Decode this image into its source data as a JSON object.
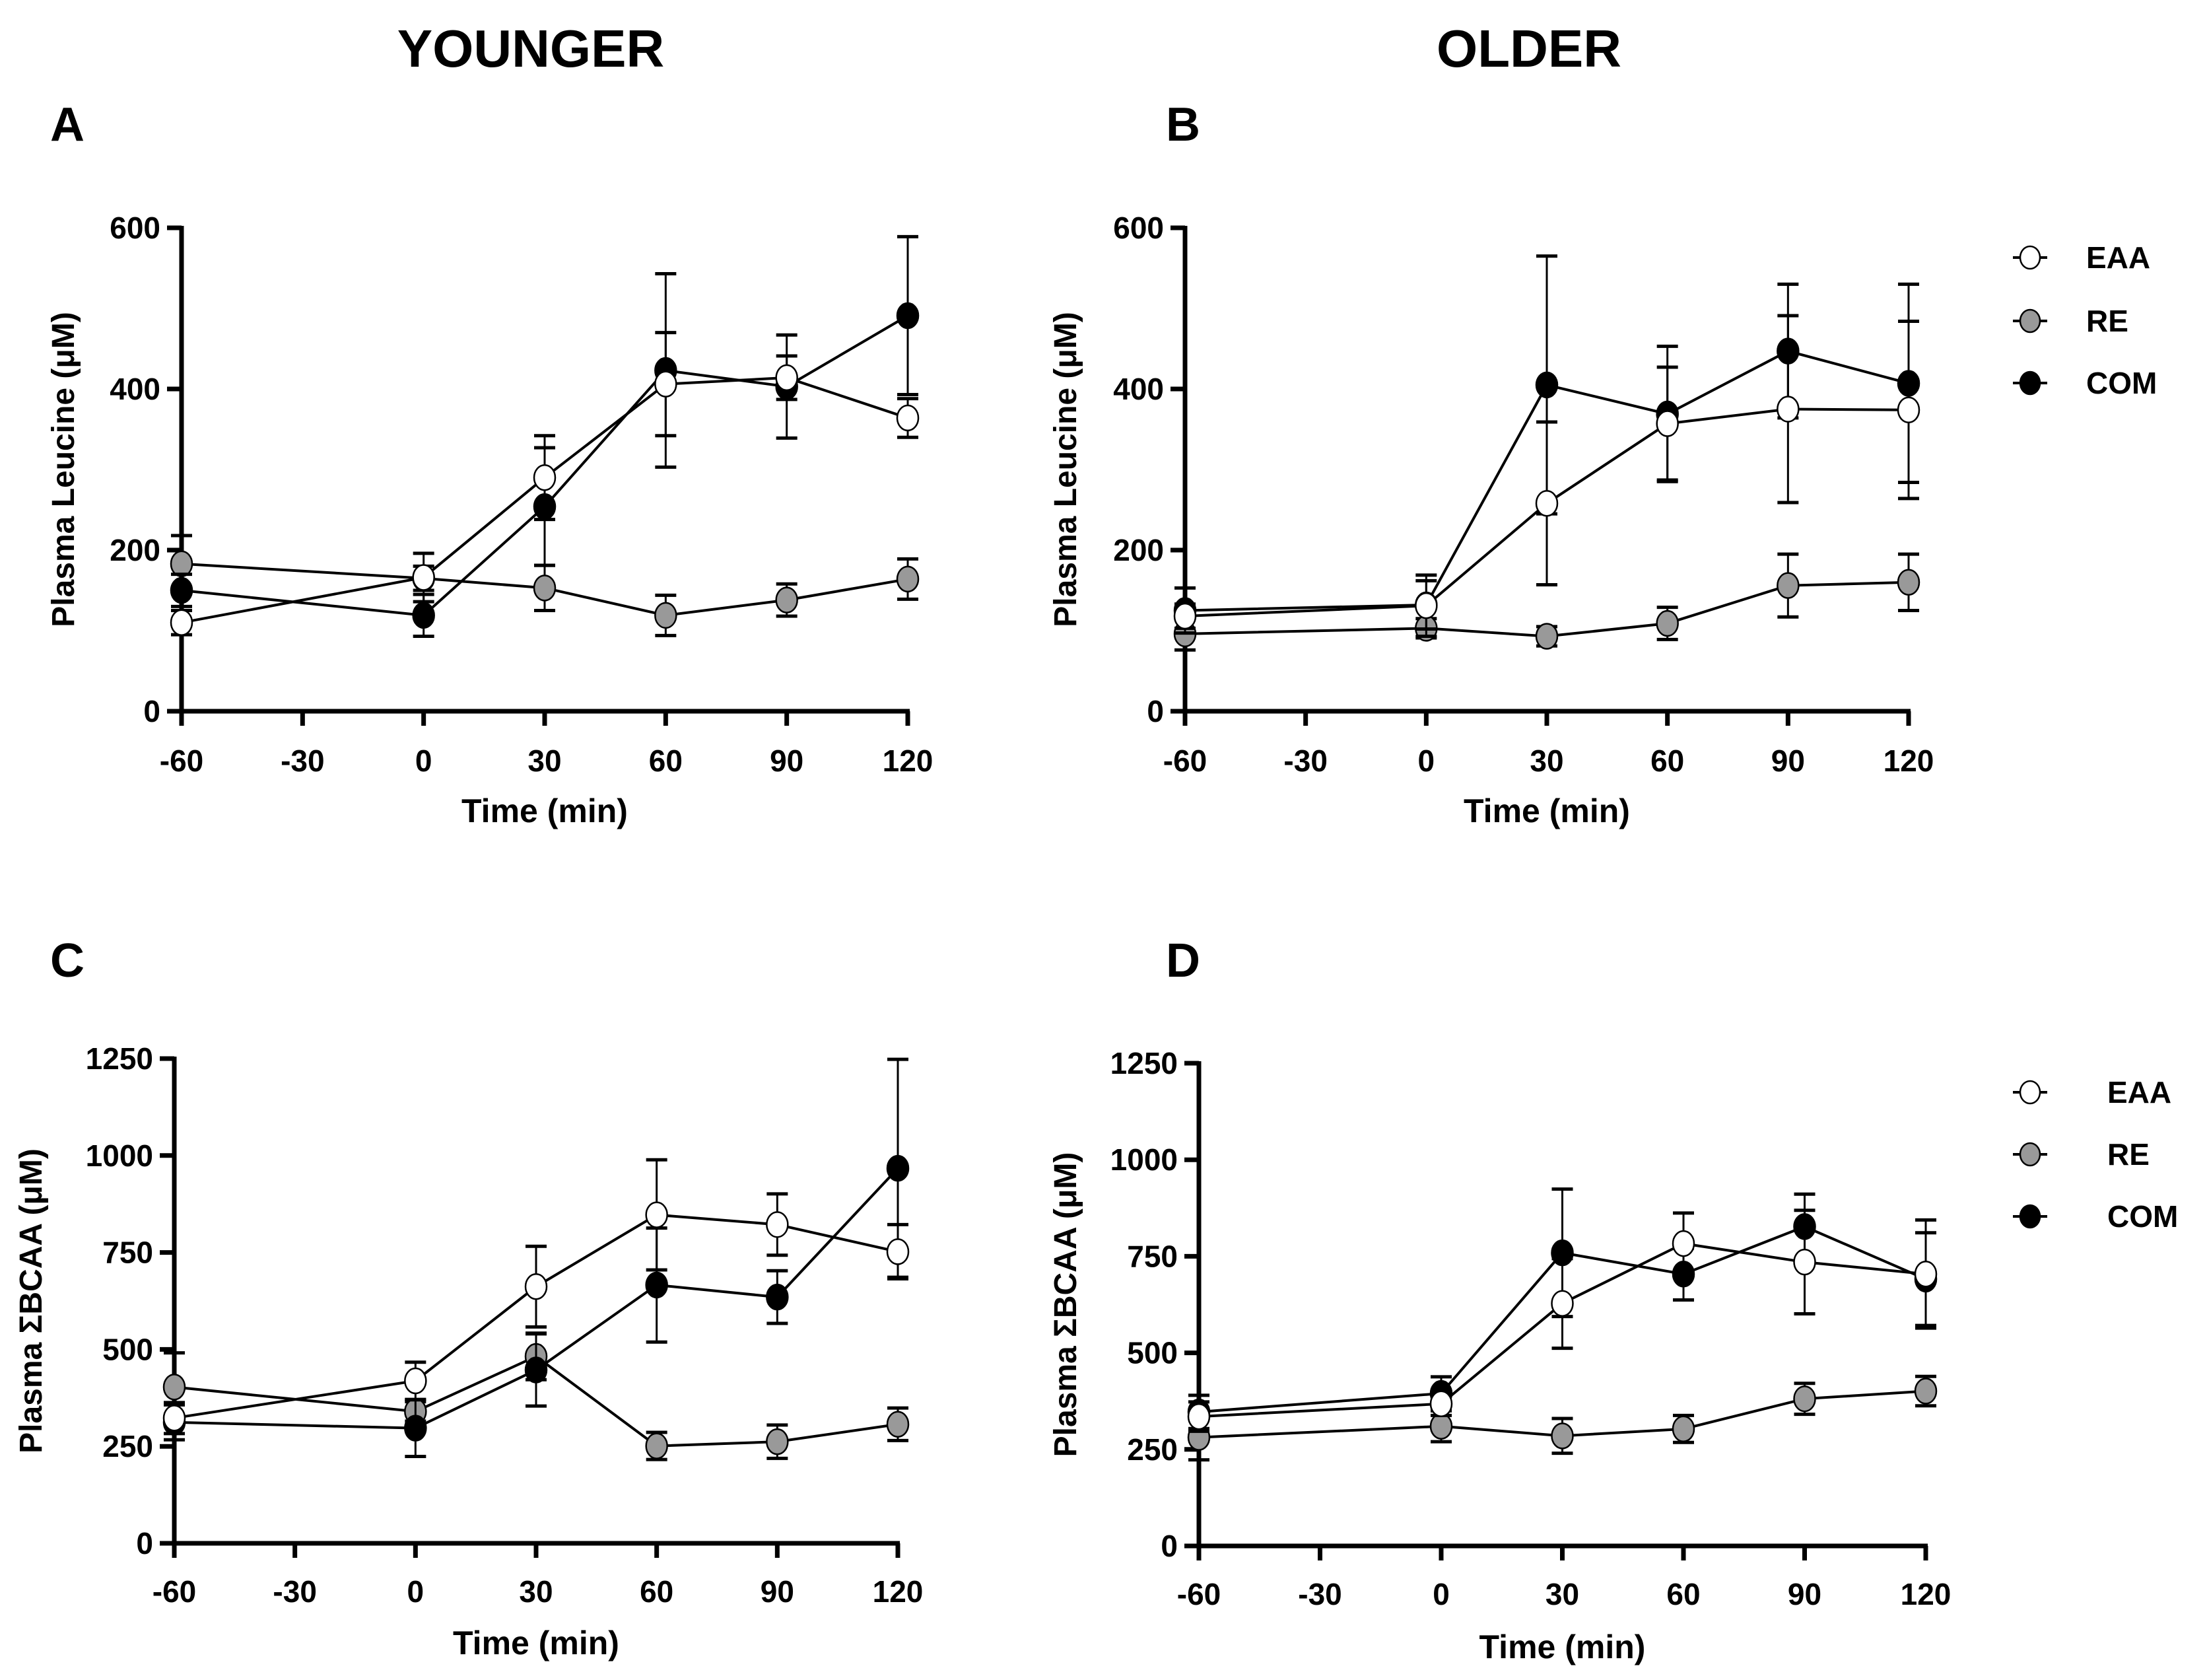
{
  "column_titles": {
    "younger": "YOUNGER",
    "older": "OLDER"
  },
  "panel_letters": [
    "A",
    "B",
    "C",
    "D"
  ],
  "legend": [
    {
      "label": "EAA",
      "fill": "#ffffff"
    },
    {
      "label": "RE",
      "fill": "#999999"
    },
    {
      "label": "COM",
      "fill": "#000000"
    }
  ],
  "chart_data": [
    {
      "panel": "A",
      "type": "line",
      "group": "YOUNGER",
      "xlabel": "Time (min)",
      "ylabel": "Plasma Leucine (μM)",
      "x": [
        -60,
        0,
        30,
        60,
        90,
        120
      ],
      "xticks": [
        "-60",
        "-30",
        "0",
        "30",
        "60",
        "90",
        "120"
      ],
      "xlim": [
        -60,
        120
      ],
      "ylim": [
        0,
        600
      ],
      "yticks": [
        "0",
        "200",
        "400",
        "600"
      ],
      "series": [
        {
          "name": "EAA",
          "values": [
            110,
            166,
            290,
            406,
            414,
            364
          ],
          "error": [
            15,
            30,
            52,
            64,
            27,
            24
          ]
        },
        {
          "name": "RE",
          "values": [
            183,
            165,
            153,
            119,
            138,
            164
          ],
          "error": [
            35,
            15,
            28,
            25,
            20,
            25
          ]
        },
        {
          "name": "COM",
          "values": [
            150,
            119,
            254,
            423,
            403,
            491
          ],
          "error": [
            20,
            26,
            73,
            120,
            64,
            98
          ]
        }
      ]
    },
    {
      "panel": "B",
      "type": "line",
      "group": "OLDER",
      "xlabel": "Time (min)",
      "ylabel": "Plasma Leucine (μM)",
      "x": [
        -60,
        0,
        30,
        60,
        90,
        120
      ],
      "xticks": [
        "-60",
        "-30",
        "0",
        "30",
        "60",
        "90",
        "120"
      ],
      "xlim": [
        -60,
        120
      ],
      "ylim": [
        0,
        600
      ],
      "yticks": [
        "0",
        "200",
        "400",
        "600"
      ],
      "series": [
        {
          "name": "EAA",
          "values": [
            118,
            131,
            258,
            357,
            375,
            374
          ],
          "error": [
            15,
            38,
            101,
            70,
            116,
            110
          ]
        },
        {
          "name": "RE",
          "values": [
            96,
            103,
            93,
            109,
            156,
            160
          ],
          "error": [
            20,
            12,
            12,
            20,
            39,
            35
          ]
        },
        {
          "name": "COM",
          "values": [
            125,
            132,
            405,
            369,
            447,
            407
          ],
          "error": [
            28,
            30,
            160,
            84,
            83,
            123
          ]
        }
      ]
    },
    {
      "panel": "C",
      "type": "line",
      "group": "YOUNGER",
      "xlabel": "Time (min)",
      "ylabel": "Plasma ΣBCAA (μM)",
      "x": [
        -60,
        0,
        30,
        60,
        90,
        120
      ],
      "xticks": [
        "-60",
        "-30",
        "0",
        "30",
        "60",
        "90",
        "120"
      ],
      "xlim": [
        -60,
        120
      ],
      "ylim": [
        0,
        1250
      ],
      "yticks": [
        "0",
        "250",
        "500",
        "750",
        "1000",
        "1250"
      ],
      "series": [
        {
          "name": "EAA",
          "values": [
            323,
            419,
            662,
            847,
            822,
            752
          ],
          "error": [
            40,
            48,
            104,
            142,
            79,
            70
          ]
        },
        {
          "name": "RE",
          "values": [
            403,
            340,
            482,
            251,
            262,
            307
          ],
          "error": [
            88,
            25,
            60,
            35,
            43,
            42
          ]
        },
        {
          "name": "COM",
          "values": [
            312,
            297,
            447,
            666,
            635,
            967
          ],
          "error": [
            45,
            73,
            93,
            147,
            68,
            281
          ]
        }
      ]
    },
    {
      "panel": "D",
      "type": "line",
      "group": "OLDER",
      "xlabel": "Time (min)",
      "ylabel": "Plasma ΣBCAA (μM)",
      "x": [
        -60,
        0,
        30,
        60,
        90,
        120
      ],
      "xticks": [
        "-60",
        "-30",
        "0",
        "30",
        "60",
        "90",
        "120"
      ],
      "xlim": [
        -60,
        120
      ],
      "ylim": [
        0,
        1250
      ],
      "yticks": [
        "0",
        "250",
        "500",
        "750",
        "1000",
        "1250"
      ],
      "series": [
        {
          "name": "EAA",
          "values": [
            335,
            368,
            628,
            783,
            735,
            704
          ],
          "error": [
            38,
            30,
            116,
            79,
            134,
            140
          ]
        },
        {
          "name": "RE",
          "values": [
            281,
            310,
            285,
            303,
            381,
            401
          ],
          "error": [
            58,
            40,
            45,
            35,
            40,
            38
          ]
        },
        {
          "name": "COM",
          "values": [
            347,
            395,
            759,
            704,
            827,
            691
          ],
          "error": [
            43,
            43,
            165,
            67,
            84,
            120
          ]
        }
      ]
    }
  ]
}
